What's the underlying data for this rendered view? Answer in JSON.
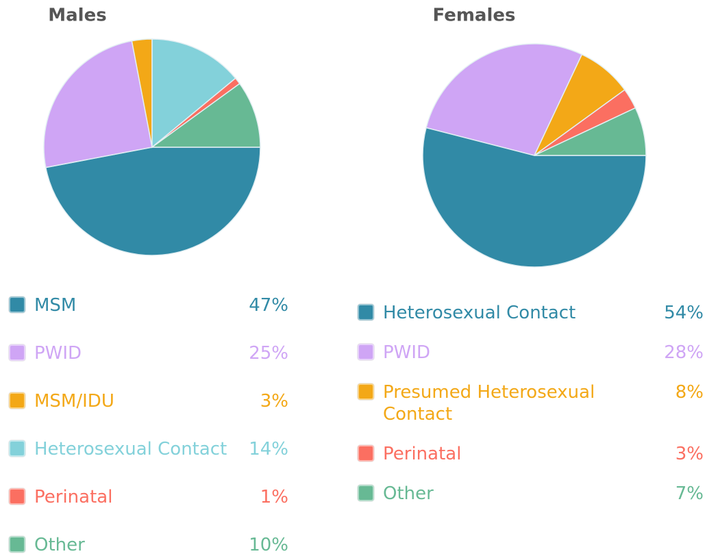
{
  "chart_data": [
    {
      "type": "pie",
      "title": "Males",
      "categories": [
        "MSM",
        "PWID",
        "MSM/IDU",
        "Heterosexual Contact",
        "Perinatal",
        "Other"
      ],
      "values": [
        47,
        25,
        3,
        14,
        1,
        10
      ],
      "value_labels": [
        "47%",
        "25%",
        "3%",
        "14%",
        "1%",
        "10%"
      ],
      "colors": [
        "#318aa6",
        "#cfa5f5",
        "#f3a817",
        "#83d1da",
        "#fb6f61",
        "#67b994"
      ]
    },
    {
      "type": "pie",
      "title": "Females",
      "categories": [
        "Heterosexual Contact",
        "PWID",
        "Presumed Heterosexual Contact",
        "Perinatal",
        "Other"
      ],
      "values": [
        54,
        28,
        8,
        3,
        7
      ],
      "value_labels": [
        "54%",
        "28%",
        "8%",
        "3%",
        "7%"
      ],
      "colors": [
        "#318aa6",
        "#cfa5f5",
        "#f3a817",
        "#fb6f61",
        "#67b994"
      ]
    }
  ]
}
